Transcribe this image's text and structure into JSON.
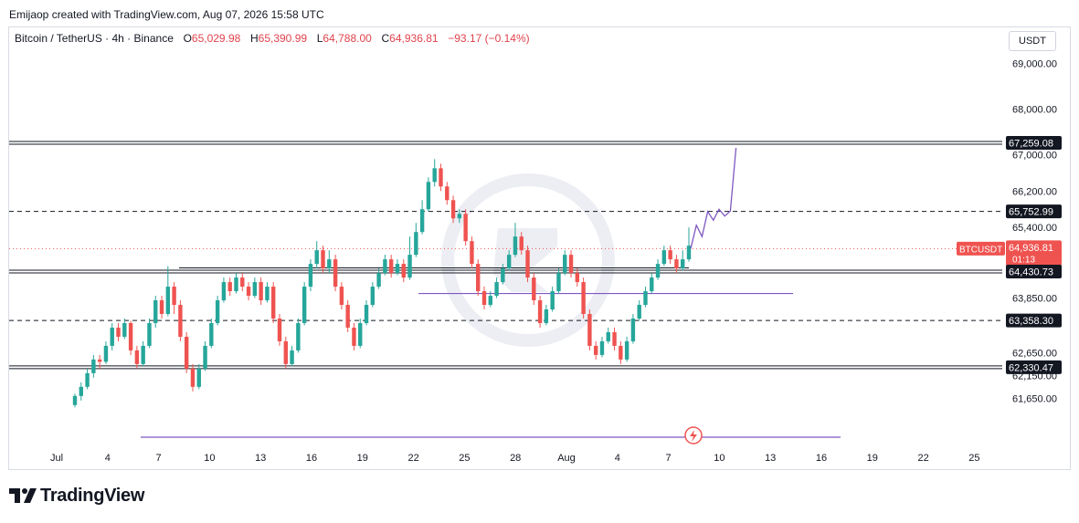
{
  "attribution": "Emijaop created with TradingView.com, Aug 07, 2026 15:58 UTC",
  "legend": {
    "symbol": "Bitcoin / TetherUS · 4h · Binance",
    "open_label": "O",
    "open": "65,029.98",
    "high_label": "H",
    "high": "65,390.99",
    "low_label": "L",
    "low": "64,788.00",
    "close_label": "C",
    "close": "64,936.81",
    "change": "−93.17 (−0.14%)"
  },
  "currency_button": "USDT",
  "brand": "TradingView",
  "colors": {
    "up": "#26a69a",
    "down": "#ef5350",
    "purple": "#7e57c2",
    "price_label": "#ef5350",
    "level_label": "#131722"
  },
  "chart_data": {
    "type": "candlestick",
    "x_ticks": [
      "Jul",
      "4",
      "7",
      "10",
      "13",
      "16",
      "19",
      "22",
      "25",
      "28",
      "Aug",
      "4",
      "7",
      "10",
      "13",
      "16",
      "19",
      "22",
      "25"
    ],
    "y_ticks": [
      "69,000.00",
      "68,000.00",
      "67,000.00",
      "66,200.00",
      "65,400.00",
      "63,850.00",
      "62,650.00",
      "62,150.00",
      "61,650.00"
    ],
    "ylim": [
      61150,
      69500
    ],
    "price_labels": [
      {
        "name": "level-67259",
        "text": "67,259.08",
        "value": 67259.08,
        "line": "solid-double"
      },
      {
        "name": "level-65752",
        "text": "65,752.99",
        "value": 65752.99,
        "line": "dashed"
      },
      {
        "name": "current-price",
        "text": "64,936.81",
        "sub": "01:13",
        "symbol": "BTCUSDT",
        "value": 64936.81,
        "line": "dotted"
      },
      {
        "name": "level-64430",
        "text": "64,430.73",
        "value": 64430.73,
        "line": "solid-double"
      },
      {
        "name": "level-63358",
        "text": "63,358.30",
        "value": 63358.3,
        "line": "dashed"
      },
      {
        "name": "level-62330",
        "text": "62,330.47",
        "value": 62330.47,
        "line": "solid-double"
      }
    ],
    "segments": [
      {
        "name": "support-ray",
        "value": 64430.73,
        "x_from": "Jul 8",
        "x_to": "Aug 7"
      },
      {
        "name": "purple-level",
        "value": 63950,
        "x_from": "Jul 21",
        "x_to": "Aug 13"
      },
      {
        "name": "purple-low-line",
        "value": 61700,
        "x_from": "Jul 6",
        "x_to": "Aug 16"
      }
    ],
    "projection": [
      [
        64936,
        0
      ],
      [
        65450,
        1
      ],
      [
        65200,
        2
      ],
      [
        65750,
        3
      ],
      [
        65560,
        4
      ],
      [
        65800,
        5
      ],
      [
        65650,
        6
      ],
      [
        65760,
        7
      ],
      [
        67150,
        8
      ]
    ],
    "candles": [
      [
        61500,
        61700,
        61450,
        61750
      ],
      [
        61700,
        61900,
        61600,
        62000
      ],
      [
        61900,
        62200,
        61850,
        62300
      ],
      [
        62200,
        62500,
        62100,
        62600
      ],
      [
        62500,
        62450,
        62300,
        62600
      ],
      [
        62450,
        62800,
        62400,
        62900
      ],
      [
        62800,
        63200,
        62700,
        63300
      ],
      [
        63200,
        63000,
        62900,
        63300
      ],
      [
        63000,
        63300,
        62950,
        63400
      ],
      [
        63300,
        62700,
        62600,
        63350
      ],
      [
        62700,
        62400,
        62300,
        62800
      ],
      [
        62400,
        62800,
        62350,
        62900
      ],
      [
        62800,
        63300,
        62750,
        63400
      ],
      [
        63300,
        63800,
        63200,
        63900
      ],
      [
        63800,
        63500,
        63400,
        63900
      ],
      [
        63500,
        64100,
        63450,
        64550
      ],
      [
        64100,
        63700,
        63500,
        64200
      ],
      [
        63700,
        63000,
        62900,
        63800
      ],
      [
        63000,
        62300,
        62200,
        63100
      ],
      [
        62300,
        61900,
        61800,
        62400
      ],
      [
        61900,
        62300,
        61850,
        62400
      ],
      [
        62300,
        62800,
        62250,
        62900
      ],
      [
        62800,
        63300,
        62750,
        63400
      ],
      [
        63300,
        63800,
        63250,
        63900
      ],
      [
        63800,
        64200,
        63750,
        64300
      ],
      [
        64200,
        64000,
        63900,
        64300
      ],
      [
        64000,
        64300,
        63950,
        64400
      ],
      [
        64300,
        64100,
        64000,
        64400
      ],
      [
        64100,
        63900,
        63800,
        64200
      ],
      [
        63900,
        64200,
        63850,
        64300
      ],
      [
        64200,
        63800,
        63700,
        64300
      ],
      [
        63800,
        64100,
        63750,
        64200
      ],
      [
        64100,
        63400,
        63300,
        64200
      ],
      [
        63400,
        62900,
        62800,
        63500
      ],
      [
        62900,
        62400,
        62300,
        63000
      ],
      [
        62400,
        62700,
        62350,
        62800
      ],
      [
        62700,
        63300,
        62650,
        63400
      ],
      [
        63300,
        64100,
        63250,
        64200
      ],
      [
        64100,
        64600,
        64000,
        64700
      ],
      [
        64600,
        64900,
        64500,
        65100
      ],
      [
        64900,
        64500,
        64400,
        65000
      ],
      [
        64500,
        64700,
        64400,
        64900
      ],
      [
        64700,
        64100,
        64000,
        64800
      ],
      [
        64100,
        63700,
        63600,
        64200
      ],
      [
        63700,
        63200,
        63100,
        63800
      ],
      [
        63200,
        62800,
        62700,
        63300
      ],
      [
        62800,
        63300,
        62750,
        63400
      ],
      [
        63300,
        63700,
        63250,
        63800
      ],
      [
        63700,
        64100,
        63650,
        64200
      ],
      [
        64100,
        64400,
        64050,
        64500
      ],
      [
        64400,
        64700,
        64350,
        64800
      ],
      [
        64700,
        64400,
        64300,
        64800
      ],
      [
        64400,
        64600,
        64350,
        64700
      ],
      [
        64600,
        64300,
        64200,
        64700
      ],
      [
        64300,
        64800,
        64250,
        65200
      ],
      [
        64800,
        65300,
        64750,
        65500
      ],
      [
        65300,
        65800,
        65250,
        66000
      ],
      [
        65800,
        66400,
        65750,
        66500
      ],
      [
        66400,
        66700,
        66300,
        66900
      ],
      [
        66700,
        66300,
        66200,
        66800
      ],
      [
        66300,
        66000,
        65900,
        66400
      ],
      [
        66000,
        65600,
        65500,
        66100
      ],
      [
        65600,
        65700,
        65500,
        65800
      ],
      [
        65700,
        65100,
        65000,
        65800
      ],
      [
        65100,
        64600,
        64500,
        65200
      ],
      [
        64600,
        64000,
        63900,
        64700
      ],
      [
        64000,
        63700,
        63600,
        64100
      ],
      [
        63700,
        63900,
        63650,
        64000
      ],
      [
        63900,
        64200,
        63850,
        64300
      ],
      [
        64200,
        64500,
        64150,
        64600
      ],
      [
        64500,
        64800,
        64450,
        64900
      ],
      [
        64800,
        65200,
        64750,
        65500
      ],
      [
        65200,
        64900,
        64800,
        65300
      ],
      [
        64900,
        64300,
        64200,
        65000
      ],
      [
        64300,
        63800,
        63700,
        64400
      ],
      [
        63800,
        63300,
        63200,
        63900
      ],
      [
        63300,
        63600,
        63250,
        63700
      ],
      [
        63600,
        64000,
        63550,
        64100
      ],
      [
        64000,
        64400,
        63950,
        64500
      ],
      [
        64400,
        64800,
        64350,
        64900
      ],
      [
        64800,
        64400,
        64300,
        64900
      ],
      [
        64400,
        64200,
        64100,
        64500
      ],
      [
        64200,
        63500,
        63400,
        64300
      ],
      [
        63500,
        62800,
        62700,
        63600
      ],
      [
        62800,
        62600,
        62500,
        62900
      ],
      [
        62600,
        62900,
        62550,
        63000
      ],
      [
        62900,
        63100,
        62850,
        63200
      ],
      [
        63100,
        62800,
        62700,
        63200
      ],
      [
        62800,
        62500,
        62400,
        62900
      ],
      [
        62500,
        62900,
        62450,
        63000
      ],
      [
        62900,
        63400,
        62850,
        63500
      ],
      [
        63400,
        63700,
        63350,
        63800
      ],
      [
        63700,
        64000,
        63650,
        64100
      ],
      [
        64000,
        64300,
        63950,
        64400
      ],
      [
        64300,
        64600,
        64250,
        64700
      ],
      [
        64600,
        64900,
        64550,
        65000
      ],
      [
        64900,
        64700,
        64600,
        65000
      ],
      [
        64700,
        64500,
        64400,
        64800
      ],
      [
        64500,
        64700,
        64450,
        64900
      ],
      [
        64700,
        65000,
        64650,
        65400
      ]
    ]
  }
}
